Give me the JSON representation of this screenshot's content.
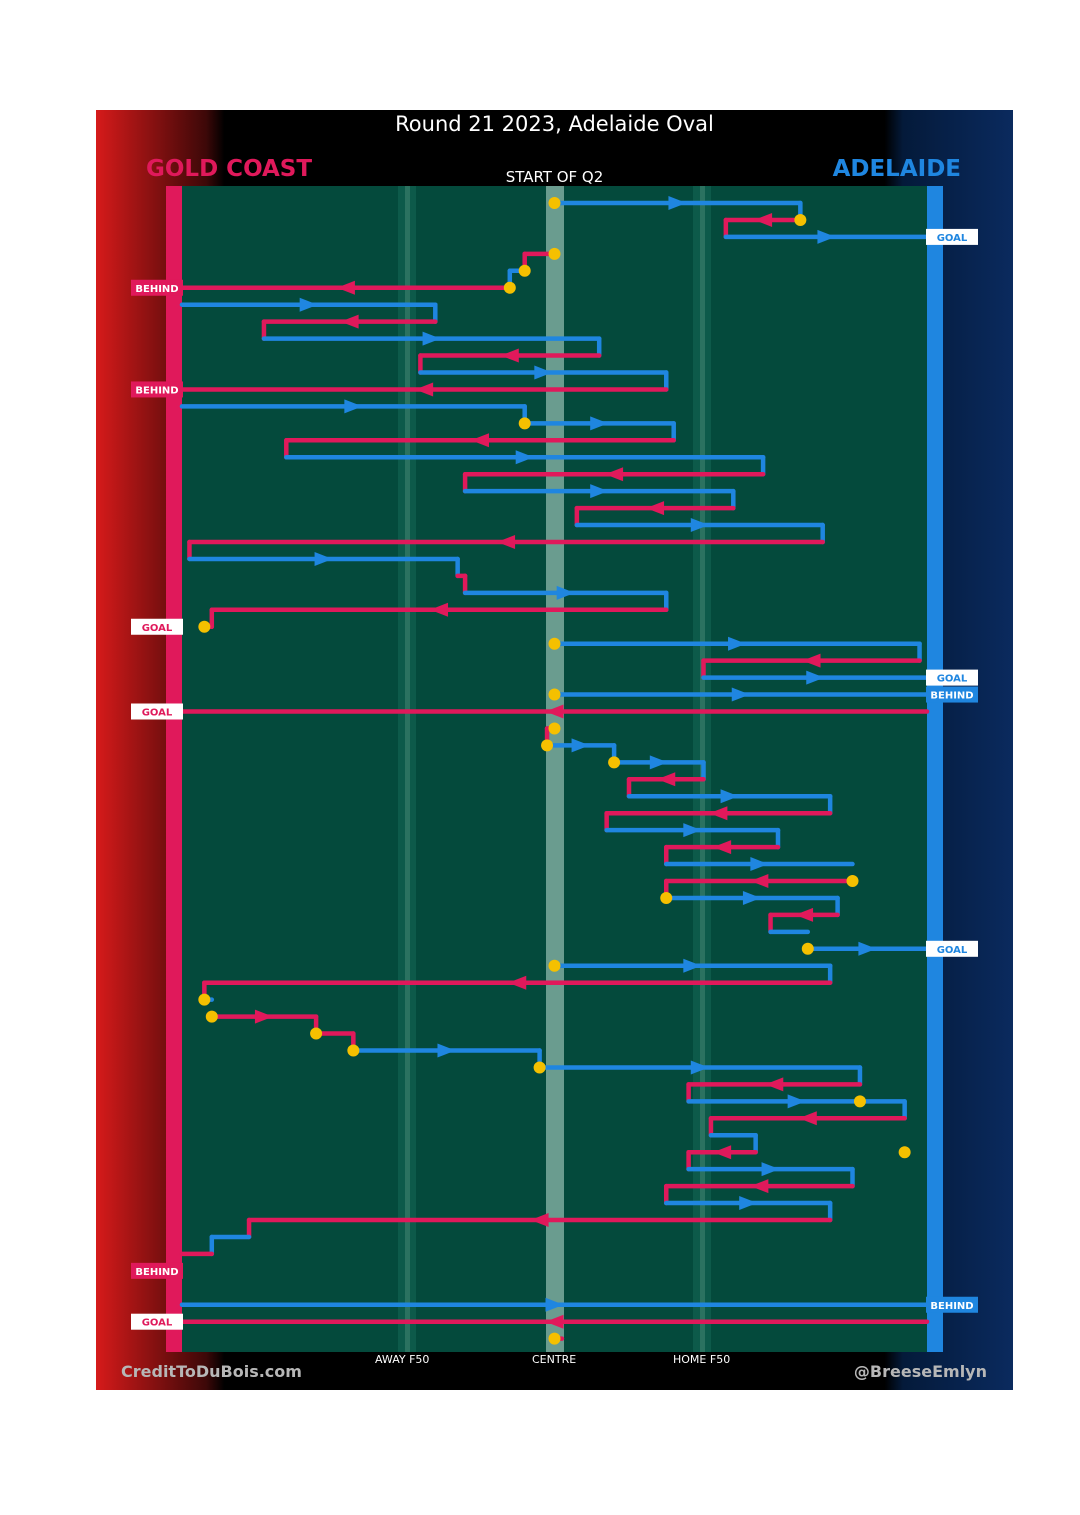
{
  "title": "Round 21 2023, Adelaide Oval",
  "teams": {
    "home": {
      "name": "GOLD COAST",
      "color": "#e0195b"
    },
    "away": {
      "name": "ADELAIDE",
      "color": "#1f86e0"
    }
  },
  "period_label": "START OF Q2",
  "zone_labels": {
    "away_f50": "AWAY F50",
    "centre": "CENTRE",
    "home_f50": "HOME F50"
  },
  "credit": "CreditToDuBois.com",
  "handle": "@BreeseEmlyn",
  "colors": {
    "field": "#044a3c",
    "ball_up": "#f5c000",
    "label_bg": "#ffffff"
  },
  "chart_data": {
    "type": "line",
    "description": "Ball movement chain chart; x axis = field position (0 = Gold Coast goal, 100 = Adelaide goal), rows run top to bottom in time order",
    "xlim": [
      0,
      100
    ],
    "zone_ticks": [
      {
        "name": "AWAY F50",
        "x": 31
      },
      {
        "name": "CENTRE",
        "x": 50
      },
      {
        "name": "HOME F50",
        "x": 69
      }
    ],
    "chains": [
      {
        "team": "ADL",
        "row": 0,
        "from": 50,
        "to": 83
      },
      {
        "team": "ADL",
        "row": 0,
        "from": 83,
        "to": 83,
        "rowTo": 1
      },
      {
        "team": "GC",
        "row": 1,
        "from": 83,
        "to": 73
      },
      {
        "team": "GC",
        "row": 1,
        "from": 73,
        "to": 73,
        "rowTo": 2
      },
      {
        "team": "ADL",
        "row": 2,
        "from": 73,
        "to": 100
      },
      {
        "team": "GC",
        "row": 3,
        "from": 50,
        "to": 46
      },
      {
        "team": "GC",
        "row": 3,
        "from": 46,
        "to": 46,
        "rowTo": 4
      },
      {
        "team": "ADL",
        "row": 4,
        "from": 46,
        "to": 44
      },
      {
        "team": "ADL",
        "row": 4,
        "from": 44,
        "to": 44,
        "rowTo": 5
      },
      {
        "team": "GC",
        "row": 5,
        "from": 44,
        "to": 0
      },
      {
        "team": "ADL",
        "row": 6,
        "from": 0,
        "to": 34
      },
      {
        "team": "ADL",
        "row": 6,
        "from": 34,
        "to": 34,
        "rowTo": 7
      },
      {
        "team": "GC",
        "row": 7,
        "from": 34,
        "to": 11
      },
      {
        "team": "GC",
        "row": 7,
        "from": 11,
        "to": 11,
        "rowTo": 8
      },
      {
        "team": "ADL",
        "row": 8,
        "from": 11,
        "to": 56
      },
      {
        "team": "ADL",
        "row": 8,
        "from": 56,
        "to": 56,
        "rowTo": 9
      },
      {
        "team": "GC",
        "row": 9,
        "from": 56,
        "to": 32
      },
      {
        "team": "GC",
        "row": 9,
        "from": 32,
        "to": 32,
        "rowTo": 10
      },
      {
        "team": "ADL",
        "row": 10,
        "from": 32,
        "to": 65
      },
      {
        "team": "ADL",
        "row": 10,
        "from": 65,
        "to": 65,
        "rowTo": 11
      },
      {
        "team": "GC",
        "row": 11,
        "from": 65,
        "to": 0
      },
      {
        "team": "ADL",
        "row": 12,
        "from": 0,
        "to": 46
      },
      {
        "team": "ADL",
        "row": 12,
        "from": 46,
        "to": 46,
        "rowTo": 13
      },
      {
        "team": "ADL",
        "row": 13,
        "from": 46,
        "to": 66
      },
      {
        "team": "ADL",
        "row": 13,
        "from": 66,
        "to": 66,
        "rowTo": 14
      },
      {
        "team": "GC",
        "row": 14,
        "from": 66,
        "to": 14
      },
      {
        "team": "GC",
        "row": 14,
        "from": 14,
        "to": 14,
        "rowTo": 15
      },
      {
        "team": "ADL",
        "row": 15,
        "from": 14,
        "to": 78
      },
      {
        "team": "ADL",
        "row": 15,
        "from": 78,
        "to": 78,
        "rowTo": 16
      },
      {
        "team": "GC",
        "row": 16,
        "from": 78,
        "to": 38
      },
      {
        "team": "GC",
        "row": 16,
        "from": 38,
        "to": 38,
        "rowTo": 17
      },
      {
        "team": "ADL",
        "row": 17,
        "from": 38,
        "to": 74
      },
      {
        "team": "ADL",
        "row": 17,
        "from": 74,
        "to": 74,
        "rowTo": 18
      },
      {
        "team": "GC",
        "row": 18,
        "from": 74,
        "to": 53
      },
      {
        "team": "GC",
        "row": 18,
        "from": 53,
        "to": 53,
        "rowTo": 19
      },
      {
        "team": "ADL",
        "row": 19,
        "from": 53,
        "to": 86
      },
      {
        "team": "ADL",
        "row": 19,
        "from": 86,
        "to": 86,
        "rowTo": 20
      },
      {
        "team": "GC",
        "row": 20,
        "from": 86,
        "to": 1
      },
      {
        "team": "GC",
        "row": 20,
        "from": 1,
        "to": 1,
        "rowTo": 21
      },
      {
        "team": "ADL",
        "row": 21,
        "from": 1,
        "to": 37
      },
      {
        "team": "ADL",
        "row": 21,
        "from": 37,
        "to": 37,
        "rowTo": 22
      },
      {
        "team": "GC",
        "row": 22,
        "from": 37,
        "to": 38
      },
      {
        "team": "GC",
        "row": 22,
        "from": 38,
        "to": 38,
        "rowTo": 23
      },
      {
        "team": "ADL",
        "row": 23,
        "from": 38,
        "to": 65
      },
      {
        "team": "ADL",
        "row": 23,
        "from": 65,
        "to": 65,
        "rowTo": 24
      },
      {
        "team": "GC",
        "row": 24,
        "from": 65,
        "to": 4
      },
      {
        "team": "GC",
        "row": 24,
        "from": 4,
        "to": 4,
        "rowTo": 25
      },
      {
        "team": "GC",
        "row": 25,
        "from": 4,
        "to": 3
      },
      {
        "team": "ADL",
        "row": 26,
        "from": 50,
        "to": 99
      },
      {
        "team": "ADL",
        "row": 26,
        "from": 99,
        "to": 99,
        "rowTo": 27
      },
      {
        "team": "GC",
        "row": 27,
        "from": 99,
        "to": 70
      },
      {
        "team": "GC",
        "row": 27,
        "from": 70,
        "to": 70,
        "rowTo": 28
      },
      {
        "team": "ADL",
        "row": 28,
        "from": 70,
        "to": 100
      },
      {
        "team": "ADL",
        "row": 29,
        "from": 50,
        "to": 100
      },
      {
        "team": "GC",
        "row": 30,
        "from": 100,
        "to": 0
      },
      {
        "team": "GC",
        "row": 31,
        "from": 50,
        "to": 49
      },
      {
        "team": "GC",
        "row": 31,
        "from": 49,
        "to": 49,
        "rowTo": 32
      },
      {
        "team": "ADL",
        "row": 32,
        "from": 49,
        "to": 58
      },
      {
        "team": "ADL",
        "row": 32,
        "from": 58,
        "to": 58,
        "rowTo": 33
      },
      {
        "team": "ADL",
        "row": 33,
        "from": 58,
        "to": 70
      },
      {
        "team": "ADL",
        "row": 33,
        "from": 70,
        "to": 70,
        "rowTo": 34
      },
      {
        "team": "GC",
        "row": 34,
        "from": 70,
        "to": 60
      },
      {
        "team": "GC",
        "row": 34,
        "from": 60,
        "to": 60,
        "rowTo": 35
      },
      {
        "team": "ADL",
        "row": 35,
        "from": 60,
        "to": 87
      },
      {
        "team": "ADL",
        "row": 35,
        "from": 87,
        "to": 87,
        "rowTo": 36
      },
      {
        "team": "GC",
        "row": 36,
        "from": 87,
        "to": 57
      },
      {
        "team": "GC",
        "row": 36,
        "from": 57,
        "to": 57,
        "rowTo": 37
      },
      {
        "team": "ADL",
        "row": 37,
        "from": 57,
        "to": 80
      },
      {
        "team": "ADL",
        "row": 37,
        "from": 80,
        "to": 80,
        "rowTo": 38
      },
      {
        "team": "GC",
        "row": 38,
        "from": 80,
        "to": 65
      },
      {
        "team": "GC",
        "row": 38,
        "from": 65,
        "to": 65,
        "rowTo": 39
      },
      {
        "team": "ADL",
        "row": 39,
        "from": 65,
        "to": 90
      },
      {
        "team": "GC",
        "row": 40,
        "from": 90,
        "to": 65
      },
      {
        "team": "GC",
        "row": 40,
        "from": 65,
        "to": 65,
        "rowTo": 41
      },
      {
        "team": "ADL",
        "row": 41,
        "from": 65,
        "to": 88
      },
      {
        "team": "ADL",
        "row": 41,
        "from": 88,
        "to": 88,
        "rowTo": 42
      },
      {
        "team": "GC",
        "row": 42,
        "from": 88,
        "to": 79
      },
      {
        "team": "GC",
        "row": 42,
        "from": 79,
        "to": 79,
        "rowTo": 43
      },
      {
        "team": "ADL",
        "row": 43,
        "from": 79,
        "to": 84
      },
      {
        "team": "ADL",
        "row": 44,
        "from": 84,
        "to": 100
      },
      {
        "team": "ADL",
        "row": 45,
        "from": 50,
        "to": 87
      },
      {
        "team": "ADL",
        "row": 45,
        "from": 87,
        "to": 87,
        "rowTo": 46
      },
      {
        "team": "GC",
        "row": 46,
        "from": 87,
        "to": 3
      },
      {
        "team": "GC",
        "row": 46,
        "from": 3,
        "to": 3,
        "rowTo": 47
      },
      {
        "team": "ADL",
        "row": 47,
        "from": 3,
        "to": 4
      },
      {
        "team": "GC",
        "row": 48,
        "from": 4,
        "to": 18
      },
      {
        "team": "GC",
        "row": 48,
        "from": 18,
        "to": 18,
        "rowTo": 49
      },
      {
        "team": "GC",
        "row": 49,
        "from": 18,
        "to": 23
      },
      {
        "team": "GC",
        "row": 49,
        "from": 23,
        "to": 23,
        "rowTo": 50
      },
      {
        "team": "ADL",
        "row": 50,
        "from": 23,
        "to": 48
      },
      {
        "team": "ADL",
        "row": 50,
        "from": 48,
        "to": 48,
        "rowTo": 51
      },
      {
        "team": "ADL",
        "row": 51,
        "from": 48,
        "to": 91
      },
      {
        "team": "ADL",
        "row": 51,
        "from": 91,
        "to": 91,
        "rowTo": 52
      },
      {
        "team": "GC",
        "row": 52,
        "from": 91,
        "to": 68
      },
      {
        "team": "GC",
        "row": 52,
        "from": 68,
        "to": 68,
        "rowTo": 53
      },
      {
        "team": "ADL",
        "row": 53,
        "from": 68,
        "to": 97
      },
      {
        "team": "ADL",
        "row": 53,
        "from": 97,
        "to": 97,
        "rowTo": 54
      },
      {
        "team": "GC",
        "row": 54,
        "from": 97,
        "to": 71
      },
      {
        "team": "GC",
        "row": 54,
        "from": 71,
        "to": 71,
        "rowTo": 55
      },
      {
        "team": "ADL",
        "row": 55,
        "from": 71,
        "to": 77
      },
      {
        "team": "ADL",
        "row": 55,
        "from": 77,
        "to": 77,
        "rowTo": 56
      },
      {
        "team": "GC",
        "row": 56,
        "from": 77,
        "to": 68
      },
      {
        "team": "GC",
        "row": 56,
        "from": 68,
        "to": 68,
        "rowTo": 57
      },
      {
        "team": "ADL",
        "row": 57,
        "from": 68,
        "to": 90
      },
      {
        "team": "ADL",
        "row": 57,
        "from": 90,
        "to": 90,
        "rowTo": 58
      },
      {
        "team": "GC",
        "row": 58,
        "from": 90,
        "to": 65
      },
      {
        "team": "GC",
        "row": 58,
        "from": 65,
        "to": 65,
        "rowTo": 59
      },
      {
        "team": "ADL",
        "row": 59,
        "from": 65,
        "to": 87
      },
      {
        "team": "ADL",
        "row": 59,
        "from": 87,
        "to": 87,
        "rowTo": 60
      },
      {
        "team": "GC",
        "row": 60,
        "from": 87,
        "to": 9
      },
      {
        "team": "GC",
        "row": 60,
        "from": 9,
        "to": 9,
        "rowTo": 61
      },
      {
        "team": "ADL",
        "row": 61,
        "from": 9,
        "to": 4
      },
      {
        "team": "ADL",
        "row": 61,
        "from": 4,
        "to": 4,
        "rowTo": 62
      },
      {
        "team": "GC",
        "row": 62,
        "from": 4,
        "to": 0
      },
      {
        "team": "ADL",
        "row": 65,
        "from": 0,
        "to": 100
      },
      {
        "team": "GC",
        "row": 66,
        "from": 100,
        "to": 0
      },
      {
        "team": "GC",
        "row": 67,
        "from": 50,
        "to": 51
      }
    ],
    "ball_ups": [
      {
        "row": 0,
        "x": 50
      },
      {
        "row": 1,
        "x": 83
      },
      {
        "row": 3,
        "x": 50
      },
      {
        "row": 4,
        "x": 46
      },
      {
        "row": 5,
        "x": 44
      },
      {
        "row": 13,
        "x": 46
      },
      {
        "row": 25,
        "x": 3
      },
      {
        "row": 26,
        "x": 50
      },
      {
        "row": 29,
        "x": 50
      },
      {
        "row": 31,
        "x": 50
      },
      {
        "row": 32,
        "x": 49
      },
      {
        "row": 33,
        "x": 58
      },
      {
        "row": 40,
        "x": 90
      },
      {
        "row": 41,
        "x": 65
      },
      {
        "row": 44,
        "x": 84
      },
      {
        "row": 45,
        "x": 50
      },
      {
        "row": 47,
        "x": 3
      },
      {
        "row": 48,
        "x": 4
      },
      {
        "row": 49,
        "x": 18
      },
      {
        "row": 50,
        "x": 23
      },
      {
        "row": 51,
        "x": 48
      },
      {
        "row": 53,
        "x": 91
      },
      {
        "row": 56,
        "x": 97
      },
      {
        "row": 67,
        "x": 50
      }
    ],
    "results": [
      {
        "row": 2,
        "side": "right",
        "team": "ADL",
        "label": "GOAL"
      },
      {
        "row": 5,
        "side": "left",
        "team": "GC",
        "label": "BEHIND"
      },
      {
        "row": 11,
        "side": "left",
        "team": "GC",
        "label": "BEHIND"
      },
      {
        "row": 25,
        "side": "left",
        "team": "GC",
        "label": "GOAL"
      },
      {
        "row": 28,
        "side": "right",
        "team": "ADL",
        "label": "GOAL"
      },
      {
        "row": 29,
        "side": "right",
        "team": "ADL",
        "label": "BEHIND"
      },
      {
        "row": 30,
        "side": "left",
        "team": "GC",
        "label": "GOAL"
      },
      {
        "row": 44,
        "side": "right",
        "team": "ADL",
        "label": "GOAL"
      },
      {
        "row": 63,
        "side": "left",
        "team": "GC",
        "label": "BEHIND"
      },
      {
        "row": 65,
        "side": "right",
        "team": "ADL",
        "label": "BEHIND"
      },
      {
        "row": 66,
        "side": "left",
        "team": "GC",
        "label": "GOAL"
      }
    ]
  }
}
